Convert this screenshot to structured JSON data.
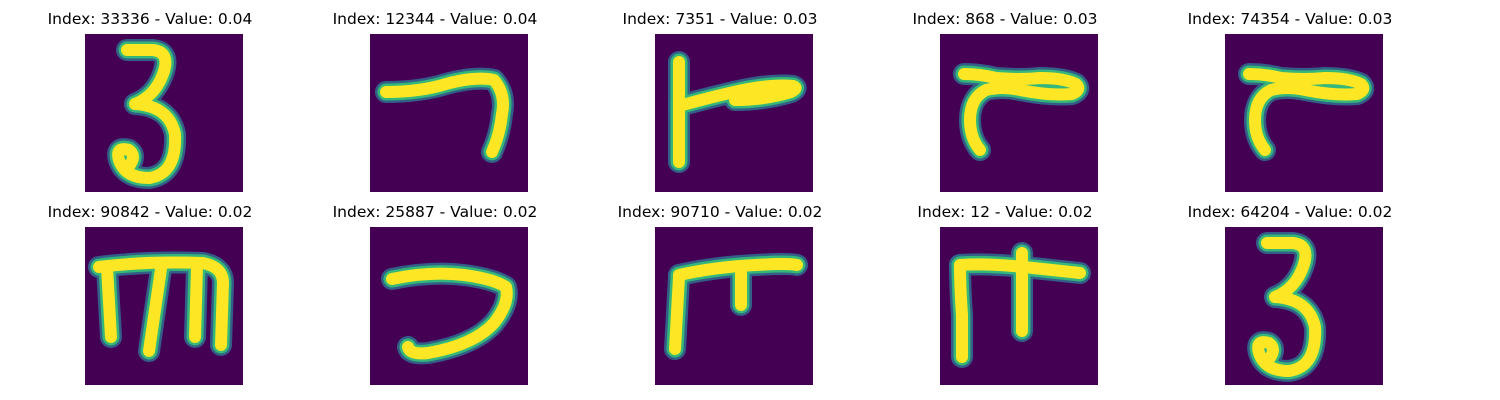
{
  "colors": {
    "background": "#440154",
    "edge_dark": "#31688e",
    "edge_mid": "#35b779",
    "stroke_core": "#fde725"
  },
  "panels": [
    {
      "title": "Index: 33336 - Value: 0.04",
      "glyph": "digit-3"
    },
    {
      "title": "Index: 12344 - Value: 0.04",
      "glyph": "hook-right"
    },
    {
      "title": "Index: 7351 - Value: 0.03",
      "glyph": "vertical-with-bar"
    },
    {
      "title": "Index: 868 - Value: 0.03",
      "glyph": "r-shape"
    },
    {
      "title": "Index: 74354 - Value: 0.03",
      "glyph": "r-shape"
    },
    {
      "title": "Index: 90842 - Value: 0.02",
      "glyph": "m-shape"
    },
    {
      "title": "Index: 25887 - Value: 0.02",
      "glyph": "hook-down"
    },
    {
      "title": "Index: 90710 - Value: 0.02",
      "glyph": "f-shape"
    },
    {
      "title": "Index: 12 - Value: 0.02",
      "glyph": "f-cross"
    },
    {
      "title": "Index: 64204 - Value: 0.02",
      "glyph": "digit-3"
    }
  ]
}
